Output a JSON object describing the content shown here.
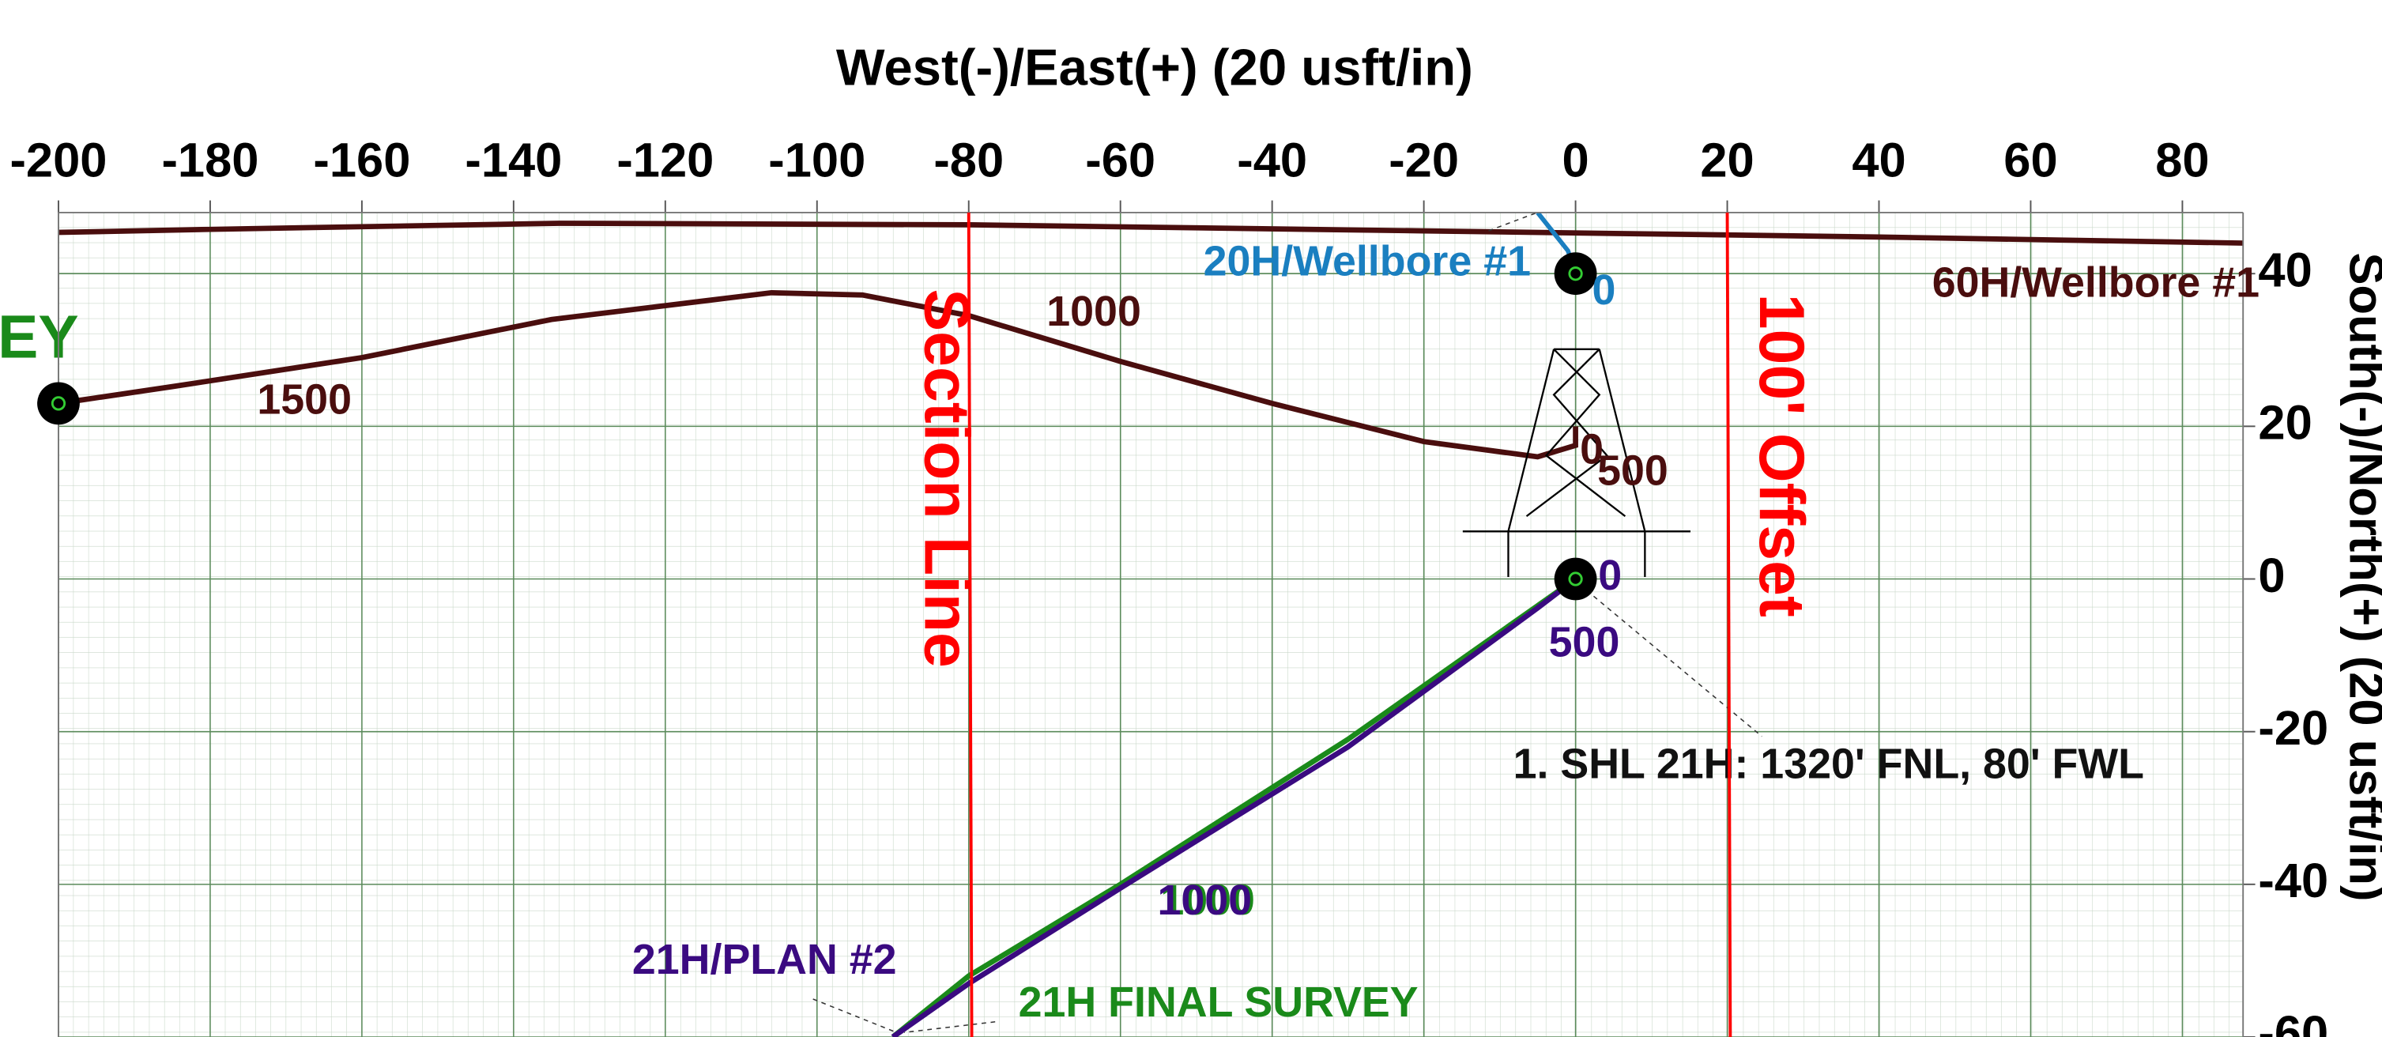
{
  "chart_data": {
    "type": "line",
    "xlabel": "West(-)/East(+) (20 usft/in)",
    "ylabel": "South(-)/North(+) (20 usft/in)",
    "xlim": [
      -200,
      88
    ],
    "ylim": [
      -60,
      48
    ],
    "xticks": [
      -200,
      -180,
      -160,
      -140,
      -120,
      -100,
      -80,
      -60,
      -40,
      -20,
      0,
      20,
      40,
      60,
      80
    ],
    "yticks": [
      -60,
      -40,
      -20,
      0,
      20,
      40
    ],
    "grid": true,
    "series": [
      {
        "name": "60H/Wellbore #1",
        "color": "#4a0e0e",
        "x": [
          -200,
          -180,
          -134,
          -80,
          -20,
          40,
          88
        ],
        "y": [
          45.4,
          45.8,
          46.6,
          46.4,
          45.6,
          44.8,
          44
        ]
      },
      {
        "color": "#4a0e0e",
        "x": [
          -200,
          -185,
          -160,
          -135,
          -106,
          -94,
          -80,
          -60,
          -40,
          -20,
          -5,
          0,
          0
        ],
        "y": [
          23,
          25.2,
          29,
          34,
          37.5,
          37.2,
          34.5,
          28.5,
          23,
          18,
          16,
          17.5,
          20
        ],
        "depth_labels": [
          "0",
          "500",
          "1000",
          "1500"
        ]
      },
      {
        "name": "20H/Wellbore #1",
        "color": "#1a7fc0",
        "x": [
          0,
          -1,
          -5
        ],
        "y": [
          40,
          43,
          48
        ],
        "depth_labels": [
          "0"
        ]
      },
      {
        "name": "21H FINAL SURVEY",
        "color": "#1a8a1a",
        "x": [
          0,
          -5,
          -30,
          -60,
          -80,
          -90
        ],
        "y": [
          0,
          -3.5,
          -21,
          -40,
          -52,
          -60
        ],
        "depth_labels": [
          "1000"
        ]
      },
      {
        "name": "21H/PLAN #2",
        "color": "#3a0a80",
        "x": [
          0,
          -5,
          -30,
          -60,
          -80,
          -90
        ],
        "y": [
          0,
          -3.8,
          -22,
          -40.5,
          -53,
          -60
        ],
        "depth_labels": [
          "0",
          "500",
          "1000"
        ]
      }
    ],
    "section_lines": [
      {
        "label": "Section Line",
        "x": -80,
        "color": "#ff0000"
      },
      {
        "label": "100' Offset",
        "x": 20,
        "color": "#ff0000"
      }
    ],
    "annotations": [
      "1. SHL 21H: 1320' FNL, 80' FWL",
      "EY"
    ]
  }
}
